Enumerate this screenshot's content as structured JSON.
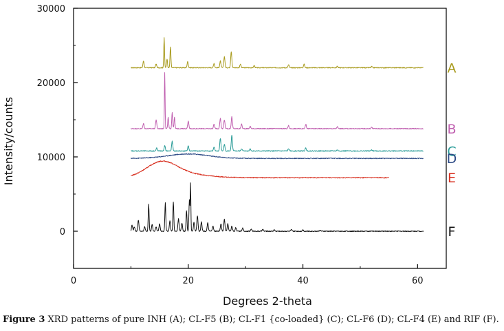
{
  "chart_data": {
    "type": "line",
    "xlabel": "Degrees 2-theta",
    "ylabel": "Intensity/counts",
    "xlim": [
      0,
      65
    ],
    "ylim": [
      -5000,
      30000
    ],
    "xticks": [
      0,
      20,
      40,
      60
    ],
    "yticks": [
      0,
      10000,
      20000,
      30000
    ],
    "grid": false,
    "series": [
      {
        "name": "A",
        "color": "#a89a1c",
        "xrange": [
          10,
          61
        ],
        "baseline": 22000,
        "peaks": [
          [
            12.2,
            900,
            0.1
          ],
          [
            14.4,
            500,
            0.1
          ],
          [
            15.8,
            4000,
            0.07
          ],
          [
            16.3,
            1200,
            0.08
          ],
          [
            16.9,
            2800,
            0.08
          ],
          [
            19.9,
            800,
            0.1
          ],
          [
            24.5,
            600,
            0.1
          ],
          [
            25.6,
            900,
            0.1
          ],
          [
            26.3,
            1500,
            0.1
          ],
          [
            27.5,
            2200,
            0.1
          ],
          [
            29.1,
            500,
            0.1
          ],
          [
            31.5,
            300,
            0.1
          ],
          [
            37.5,
            400,
            0.1
          ],
          [
            40.2,
            500,
            0.1
          ],
          [
            46.0,
            200,
            0.1
          ],
          [
            52.0,
            150,
            0.1
          ]
        ]
      },
      {
        "name": "B",
        "color": "#c060b0",
        "xrange": [
          10,
          61
        ],
        "baseline": 13800,
        "peaks": [
          [
            12.2,
            700,
            0.1
          ],
          [
            14.4,
            1200,
            0.1
          ],
          [
            15.9,
            7600,
            0.06
          ],
          [
            16.5,
            1500,
            0.08
          ],
          [
            17.2,
            2200,
            0.08
          ],
          [
            17.6,
            1500,
            0.08
          ],
          [
            20.0,
            1000,
            0.1
          ],
          [
            24.5,
            600,
            0.1
          ],
          [
            25.6,
            1400,
            0.1
          ],
          [
            26.3,
            1200,
            0.1
          ],
          [
            27.6,
            1600,
            0.1
          ],
          [
            29.3,
            600,
            0.1
          ],
          [
            30.8,
            300,
            0.1
          ],
          [
            37.5,
            400,
            0.1
          ],
          [
            40.5,
            600,
            0.1
          ],
          [
            46.0,
            250,
            0.1
          ],
          [
            52.0,
            200,
            0.1
          ]
        ]
      },
      {
        "name": "C",
        "color": "#2a9c98",
        "xrange": [
          10,
          61
        ],
        "baseline": 10800,
        "peaks": [
          [
            14.5,
            400,
            0.1
          ],
          [
            15.9,
            700,
            0.1
          ],
          [
            17.2,
            1300,
            0.1
          ],
          [
            20.0,
            700,
            0.1
          ],
          [
            24.5,
            500,
            0.1
          ],
          [
            25.6,
            1700,
            0.1
          ],
          [
            26.3,
            900,
            0.1
          ],
          [
            27.6,
            2100,
            0.1
          ],
          [
            29.3,
            300,
            0.1
          ],
          [
            30.8,
            300,
            0.1
          ],
          [
            37.5,
            300,
            0.1
          ],
          [
            40.5,
            400,
            0.1
          ],
          [
            46.0,
            150,
            0.1
          ],
          [
            52.0,
            150,
            0.1
          ]
        ]
      },
      {
        "name": "D",
        "color": "#2e4b86",
        "xrange": [
          10,
          61
        ],
        "baseline": 9800,
        "humps": [
          [
            20.0,
            600,
            3.5
          ]
        ]
      },
      {
        "name": "E",
        "color": "#d83020",
        "xrange": [
          10,
          55
        ],
        "baseline": 7200,
        "humps": [
          [
            15.3,
            1900,
            2.6
          ],
          [
            19.0,
            500,
            4
          ]
        ]
      },
      {
        "name": "F",
        "color": "#111111",
        "xrange": [
          10,
          61
        ],
        "baseline": 0,
        "peaks": [
          [
            10.2,
            800,
            0.1
          ],
          [
            10.6,
            600,
            0.1
          ],
          [
            11.3,
            1500,
            0.1
          ],
          [
            12.4,
            600,
            0.1
          ],
          [
            13.1,
            3600,
            0.08
          ],
          [
            13.7,
            900,
            0.1
          ],
          [
            14.4,
            600,
            0.1
          ],
          [
            15.0,
            1000,
            0.1
          ],
          [
            16.0,
            3800,
            0.08
          ],
          [
            16.8,
            1400,
            0.1
          ],
          [
            17.4,
            3900,
            0.08
          ],
          [
            18.3,
            1700,
            0.1
          ],
          [
            18.9,
            1100,
            0.1
          ],
          [
            19.7,
            2800,
            0.08
          ],
          [
            20.2,
            4200,
            0.08
          ],
          [
            20.4,
            6300,
            0.06
          ],
          [
            21.0,
            1200,
            0.1
          ],
          [
            21.6,
            2100,
            0.1
          ],
          [
            22.3,
            1300,
            0.1
          ],
          [
            23.4,
            1100,
            0.1
          ],
          [
            24.3,
            700,
            0.1
          ],
          [
            25.7,
            1000,
            0.1
          ],
          [
            26.3,
            1600,
            0.1
          ],
          [
            26.9,
            1000,
            0.1
          ],
          [
            27.6,
            700,
            0.1
          ],
          [
            28.3,
            500,
            0.1
          ],
          [
            29.5,
            400,
            0.1
          ],
          [
            31.0,
            300,
            0.1
          ],
          [
            33.0,
            250,
            0.1
          ],
          [
            35.0,
            200,
            0.1
          ],
          [
            38.0,
            200,
            0.1
          ],
          [
            40.0,
            200,
            0.1
          ],
          [
            43.0,
            150,
            0.1
          ]
        ]
      }
    ]
  },
  "caption": {
    "label": "Figure 3",
    "text": " XRD patterns of pure INH (A); CL-F5 (B); CL-F1 {co-loaded} (C); CL-F6 (D); CL-F4 (E) and RIF (F)."
  }
}
